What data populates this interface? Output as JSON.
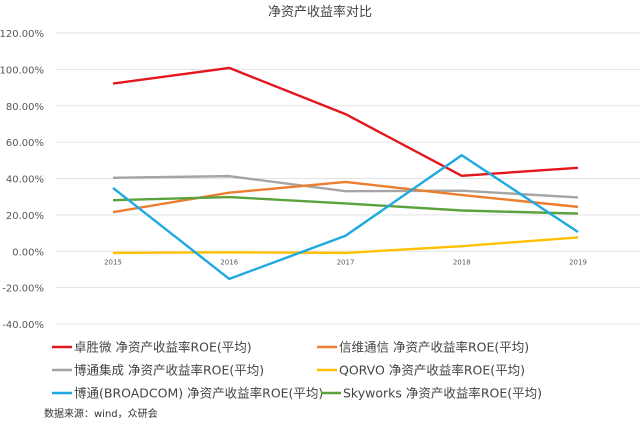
{
  "chart_data": {
    "type": "line",
    "title": "净资产收益率对比",
    "xlabel": "",
    "ylabel": "",
    "categories": [
      "2015",
      "2016",
      "2017",
      "2018",
      "2019"
    ],
    "ylim": [
      -40,
      120
    ],
    "yticks": [
      120,
      100,
      80,
      60,
      40,
      20,
      0,
      -20,
      -40
    ],
    "ytick_labels": [
      "120.00%",
      "100.00%",
      "80.00%",
      "60.00%",
      "40.00%",
      "20.00%",
      "0.00%",
      "-20.00%",
      "-40.00%"
    ],
    "grid": true,
    "legend_position": "bottom",
    "series": [
      {
        "name": "卓胜微 净资产收益率ROE(平均)",
        "color": "#e3161b",
        "values": [
          92.2,
          100.8,
          75.4,
          41.5,
          45.9
        ]
      },
      {
        "name": "信维通信 净资产收益率ROE(平均)",
        "color": "#ed7d31",
        "values": [
          21.5,
          32.2,
          38.1,
          30.9,
          24.4
        ]
      },
      {
        "name": "博通集成 净资产收益率ROE(平均)",
        "color": "#a5a5a5",
        "values": [
          40.4,
          41.3,
          33.0,
          33.3,
          29.6
        ]
      },
      {
        "name": "QORVO 净资产收益率ROE(平均)",
        "color": "#ffc000",
        "values": [
          -0.9,
          -0.6,
          -0.9,
          2.8,
          7.6
        ]
      },
      {
        "name": "博通(BROADCOM) 净资产收益率ROE(平均)",
        "color": "#1ea9e1",
        "values": [
          34.8,
          -15.2,
          8.5,
          52.8,
          10.6
        ]
      },
      {
        "name": "Skyworks 净资产收益率ROE(平均)",
        "color": "#5ca23c",
        "values": [
          28.1,
          29.8,
          26.3,
          22.4,
          20.7
        ]
      }
    ]
  },
  "source": "数据来源：wind，众研会"
}
